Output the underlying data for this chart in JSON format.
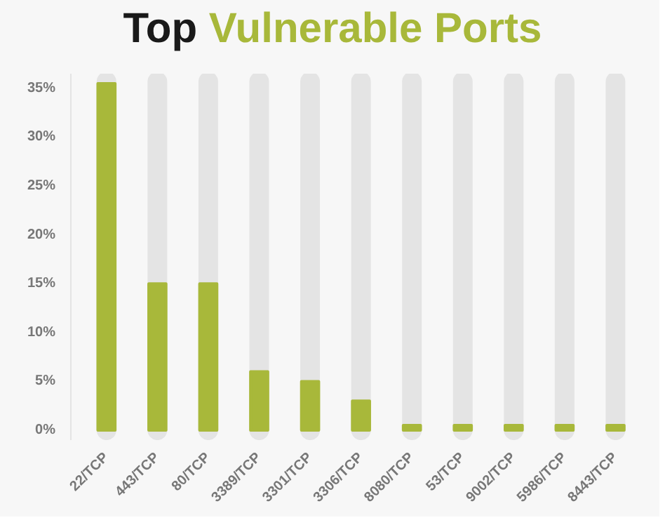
{
  "chart_data": {
    "type": "bar",
    "title": "Top Vulnerable Ports",
    "categories": [
      "22/TCP",
      "443/TCP",
      "80/TCP",
      "3389/TCP",
      "3301/TCP",
      "3306/TCP",
      "8080/TCP",
      "53/TCP",
      "9002/TCP",
      "5986/TCP",
      "8443/TCP"
    ],
    "values": [
      35.5,
      15,
      15,
      6,
      5,
      3,
      0.5,
      0.5,
      0.5,
      0.5,
      0.5
    ],
    "color": "#a8b83a",
    "ylim": [
      -1,
      36.5
    ],
    "yticks": [
      {
        "value": 0,
        "label": "0%"
      },
      {
        "value": 5,
        "label": "5%"
      },
      {
        "value": 10,
        "label": "10%"
      },
      {
        "value": 15,
        "label": "15%"
      },
      {
        "value": 20,
        "label": "20%"
      },
      {
        "value": 25,
        "label": "25%"
      },
      {
        "value": 30,
        "label": "30%"
      },
      {
        "value": 35,
        "label": "35%"
      }
    ],
    "grid": false
  }
}
